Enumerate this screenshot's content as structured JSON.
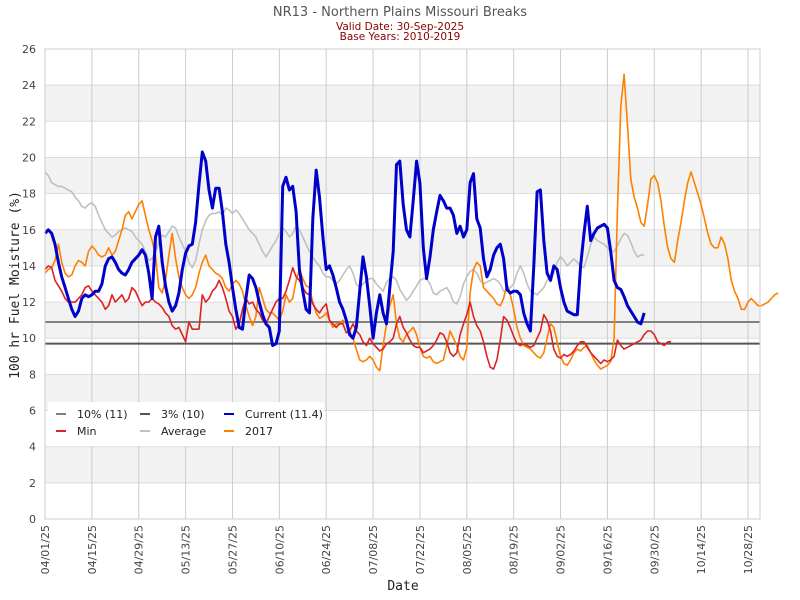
{
  "chart_data": {
    "type": "line",
    "title": "NR13 - Northern Plains Missouri Breaks",
    "subtitle_lines": [
      "Valid Date: 30-Sep-2025",
      "Base Years: 2010-2019"
    ],
    "xlabel": "Date",
    "ylabel": "100 hr Fuel Moisture (%)",
    "ylim": [
      0,
      26
    ],
    "yticks": [
      0,
      2,
      4,
      6,
      8,
      10,
      12,
      14,
      16,
      18,
      20,
      22,
      24,
      26
    ],
    "x_start": "04/01/25",
    "x_range_days": [
      0,
      213
    ],
    "xticks": [
      {
        "day": 0,
        "label": "04/01/25"
      },
      {
        "day": 14,
        "label": "04/15/25"
      },
      {
        "day": 28,
        "label": "04/29/25"
      },
      {
        "day": 42,
        "label": "05/13/25"
      },
      {
        "day": 56,
        "label": "05/27/25"
      },
      {
        "day": 70,
        "label": "06/10/25"
      },
      {
        "day": 84,
        "label": "06/24/25"
      },
      {
        "day": 98,
        "label": "07/08/25"
      },
      {
        "day": 112,
        "label": "07/22/25"
      },
      {
        "day": 126,
        "label": "08/05/25"
      },
      {
        "day": 140,
        "label": "08/19/25"
      },
      {
        "day": 154,
        "label": "09/02/25"
      },
      {
        "day": 168,
        "label": "09/16/25"
      },
      {
        "day": 182,
        "label": "09/30/25"
      },
      {
        "day": 196,
        "label": "10/14/25"
      },
      {
        "day": 210,
        "label": "10/28/25"
      }
    ],
    "grid": true,
    "legend_position": "lower-left",
    "thresholds": [
      {
        "name": "10% (11)",
        "value": 10.9,
        "color": "#808080"
      },
      {
        "name": "3% (10)",
        "value": 9.7,
        "color": "#555555"
      }
    ],
    "series": [
      {
        "name": "Current (11.4)",
        "color": "#0000cc",
        "x_step_days": 1,
        "values": [
          15.8,
          16.0,
          15.8,
          15.2,
          14.2,
          13.4,
          12.8,
          12.2,
          11.6,
          11.2,
          11.5,
          12.2,
          12.4,
          12.3,
          12.4,
          12.6,
          12.6,
          13.0,
          14.0,
          14.4,
          14.5,
          14.2,
          13.8,
          13.6,
          13.5,
          13.8,
          14.2,
          14.4,
          14.6,
          14.9,
          14.6,
          13.6,
          12.2,
          15.6,
          16.2,
          14.2,
          12.9,
          12.0,
          11.5,
          11.8,
          12.5,
          13.8,
          14.7,
          15.1,
          15.2,
          16.4,
          18.5,
          20.3,
          19.8,
          18.2,
          17.2,
          18.3,
          18.3,
          17.0,
          15.2,
          14.2,
          12.8,
          11.6,
          10.6,
          10.5,
          12.2,
          13.5,
          13.3,
          12.8,
          12.0,
          11.3,
          10.8,
          10.6,
          9.6,
          9.7,
          10.4,
          18.4,
          18.9,
          18.2,
          18.4,
          17.0,
          13.8,
          12.6,
          11.6,
          11.4,
          16.6,
          19.3,
          17.8,
          15.6,
          13.8,
          14.0,
          13.5,
          12.8,
          12.0,
          11.6,
          11.0,
          10.2,
          10.0,
          10.6,
          12.6,
          14.5,
          13.4,
          11.8,
          10.0,
          11.4,
          12.4,
          11.4,
          10.8,
          12.8,
          14.8,
          19.6,
          19.8,
          17.4,
          16.0,
          15.6,
          17.6,
          19.8,
          18.6,
          15.0,
          13.3,
          14.5,
          16.0,
          17.0,
          17.9,
          17.6,
          17.2,
          17.2,
          16.8,
          15.8,
          16.2,
          15.6,
          16.0,
          18.6,
          19.1,
          16.6,
          16.1,
          14.4,
          13.4,
          13.8,
          14.6,
          15.0,
          15.2,
          14.4,
          12.7,
          12.5,
          12.6,
          12.6,
          12.4,
          11.4,
          10.8,
          10.4,
          14.0,
          18.1,
          18.2,
          15.4,
          13.6,
          13.2,
          14.0,
          13.8,
          12.8,
          12.0,
          11.5,
          11.4,
          11.3,
          11.3,
          14.0,
          15.8,
          17.3,
          15.4,
          15.8,
          16.1,
          16.2,
          16.3,
          16.1,
          14.8,
          13.2,
          12.8,
          12.7,
          12.3,
          11.8,
          11.5,
          11.2,
          10.9,
          10.8,
          11.4
        ]
      },
      {
        "name": "Min",
        "color": "#dd2222",
        "x_step_days": 1,
        "values": [
          13.8,
          14.0,
          13.9,
          13.2,
          12.9,
          12.6,
          12.2,
          12.0,
          12.0,
          12.0,
          12.2,
          12.4,
          12.8,
          12.9,
          12.6,
          12.4,
          12.2,
          12.0,
          11.6,
          11.8,
          12.4,
          12.0,
          12.2,
          12.4,
          12.0,
          12.2,
          12.8,
          12.6,
          12.2,
          11.8,
          12.0,
          12.0,
          12.2,
          12.0,
          11.9,
          11.7,
          11.4,
          11.2,
          10.7,
          10.5,
          10.6,
          10.2,
          9.8,
          10.9,
          10.5,
          10.5,
          10.5,
          12.4,
          12.0,
          12.2,
          12.6,
          12.8,
          13.2,
          12.8,
          12.2,
          11.5,
          11.2,
          10.5,
          10.8,
          11.6,
          12.2,
          11.9,
          12.0,
          11.6,
          11.4,
          11.0,
          10.8,
          11.2,
          11.6,
          12.0,
          12.2,
          12.2,
          12.6,
          13.2,
          13.9,
          13.4,
          13.2,
          12.8,
          12.5,
          12.4,
          11.9,
          11.6,
          11.4,
          11.7,
          11.9,
          11.0,
          10.8,
          10.6,
          10.8,
          10.8,
          10.3,
          10.4,
          10.8,
          10.4,
          10.2,
          9.8,
          9.6,
          10.0,
          9.7,
          9.5,
          9.3,
          9.4,
          9.7,
          9.8,
          10.0,
          10.8,
          11.2,
          10.6,
          10.3,
          9.9,
          9.6,
          9.5,
          9.5,
          9.2,
          9.3,
          9.4,
          9.6,
          9.9,
          10.3,
          10.2,
          9.8,
          9.2,
          9.0,
          9.2,
          10.2,
          10.8,
          11.3,
          12.0,
          11.2,
          10.7,
          10.4,
          9.8,
          9.0,
          8.4,
          8.3,
          8.8,
          9.9,
          11.2,
          11.0,
          10.6,
          10.1,
          9.7,
          9.6,
          9.7,
          9.6,
          9.5,
          9.6,
          10.0,
          10.4,
          11.3,
          11.0,
          10.4,
          9.4,
          9.0,
          8.9,
          9.1,
          9.0,
          9.1,
          9.3,
          9.6,
          9.8,
          9.8,
          9.5,
          9.2,
          9.0,
          8.8,
          8.6,
          8.8,
          8.7,
          8.8,
          9.0,
          9.9,
          9.6,
          9.4,
          9.5,
          9.6,
          9.7,
          9.8,
          9.9,
          10.2,
          10.4,
          10.4,
          10.2,
          9.8,
          9.7,
          9.6,
          9.8,
          9.8
        ]
      },
      {
        "name": "Average",
        "color": "#c0c0c0",
        "x_step_days": 1,
        "values": [
          19.2,
          19.0,
          18.6,
          18.5,
          18.4,
          18.4,
          18.3,
          18.2,
          18.1,
          17.8,
          17.6,
          17.3,
          17.2,
          17.4,
          17.5,
          17.3,
          16.8,
          16.4,
          16.0,
          15.8,
          15.6,
          15.7,
          15.9,
          16.0,
          16.1,
          16.0,
          15.9,
          15.6,
          15.4,
          15.2,
          14.8,
          14.3,
          14.4,
          14.8,
          15.3,
          15.7,
          15.6,
          15.9,
          16.2,
          16.1,
          15.6,
          15.2,
          14.8,
          14.2,
          13.9,
          14.3,
          15.2,
          16.0,
          16.5,
          16.8,
          16.9,
          16.9,
          17.0,
          16.8,
          17.2,
          17.1,
          16.9,
          17.1,
          16.9,
          16.6,
          16.3,
          16.0,
          15.8,
          15.6,
          15.2,
          14.8,
          14.5,
          14.8,
          15.1,
          15.4,
          15.8,
          16.1,
          15.9,
          15.6,
          15.8,
          16.2,
          16.0,
          15.6,
          15.2,
          14.8,
          14.5,
          14.2,
          14.0,
          13.6,
          13.4,
          13.4,
          13.2,
          13.0,
          13.2,
          13.5,
          13.8,
          14.0,
          13.6,
          13.0,
          12.8,
          13.0,
          13.2,
          13.3,
          13.3,
          13.0,
          12.8,
          12.6,
          13.1,
          13.3,
          13.4,
          13.2,
          12.7,
          12.4,
          12.1,
          12.3,
          12.6,
          12.9,
          13.2,
          13.3,
          13.3,
          13.0,
          12.5,
          12.4,
          12.6,
          12.7,
          12.8,
          12.5,
          12.0,
          11.9,
          12.3,
          13.0,
          13.4,
          13.7,
          13.8,
          13.6,
          13.2,
          13.0,
          13.1,
          13.2,
          13.3,
          13.2,
          13.0,
          12.6,
          12.6,
          12.8,
          13.0,
          13.6,
          14.0,
          13.6,
          13.0,
          12.6,
          12.5,
          12.4,
          12.6,
          12.8,
          13.2,
          13.4,
          13.6,
          14.2,
          14.5,
          14.3,
          14.0,
          14.2,
          14.4,
          14.2,
          14.0,
          13.9,
          14.5,
          15.2,
          15.6,
          15.4,
          15.3,
          15.2,
          15.0,
          14.8,
          14.8,
          15.1,
          15.5,
          15.8,
          15.7,
          15.3,
          14.8,
          14.5,
          14.6,
          14.6
        ]
      },
      {
        "name": "2017",
        "color": "#ff8000",
        "x_step_days": 1,
        "values": [
          13.6,
          13.8,
          13.9,
          14.3,
          15.2,
          14.2,
          13.6,
          13.4,
          13.5,
          14.0,
          14.3,
          14.2,
          14.0,
          14.8,
          15.1,
          14.9,
          14.6,
          14.5,
          14.6,
          15.0,
          14.6,
          14.8,
          15.4,
          16.0,
          16.8,
          17.0,
          16.6,
          17.0,
          17.4,
          17.6,
          16.8,
          16.0,
          15.4,
          14.6,
          12.8,
          12.5,
          13.2,
          14.6,
          15.8,
          14.4,
          13.4,
          12.8,
          12.4,
          12.2,
          12.4,
          12.8,
          13.6,
          14.2,
          14.6,
          14.0,
          13.8,
          13.6,
          13.5,
          13.3,
          12.8,
          12.6,
          13.0,
          13.2,
          13.0,
          12.6,
          11.8,
          11.2,
          10.7,
          11.2,
          12.8,
          12.2,
          11.6,
          11.4,
          11.4,
          11.2,
          11.0,
          11.5,
          12.4,
          12.0,
          12.2,
          13.2,
          13.8,
          13.3,
          12.9,
          12.8,
          12.0,
          11.4,
          11.1,
          11.2,
          11.4,
          11.0,
          10.6,
          10.8,
          10.8,
          11.0,
          10.8,
          10.4,
          10.0,
          9.4,
          8.8,
          8.7,
          8.8,
          9.0,
          8.8,
          8.4,
          8.2,
          9.6,
          10.8,
          11.8,
          12.4,
          10.8,
          10.0,
          9.8,
          10.2,
          10.4,
          10.6,
          10.2,
          9.5,
          9.0,
          8.9,
          9.0,
          8.7,
          8.6,
          8.7,
          8.8,
          9.6,
          10.4,
          10.0,
          9.6,
          9.0,
          8.8,
          9.5,
          12.5,
          13.8,
          14.2,
          14.0,
          12.8,
          12.6,
          12.4,
          12.2,
          11.9,
          11.8,
          12.2,
          13.0,
          12.4,
          11.6,
          10.6,
          10.0,
          9.6,
          9.5,
          9.4,
          9.2,
          9.0,
          8.9,
          9.2,
          10.0,
          10.8,
          10.6,
          9.8,
          9.0,
          8.6,
          8.5,
          8.8,
          9.2,
          9.4,
          9.3,
          9.5,
          9.6,
          9.2,
          8.8,
          8.5,
          8.3,
          8.4,
          8.5,
          8.7,
          10.0,
          17.0,
          22.8,
          24.6,
          21.8,
          18.8,
          17.8,
          17.2,
          16.4,
          16.2,
          17.4,
          18.8,
          19.0,
          18.6,
          17.6,
          16.2,
          15.0,
          14.4,
          14.2,
          15.4,
          16.4,
          17.6,
          18.6,
          19.2,
          18.6,
          18.0,
          17.4,
          16.6,
          15.8,
          15.2,
          15.0,
          15.0,
          15.6,
          15.2,
          14.4,
          13.2,
          12.6,
          12.2,
          11.6,
          11.6,
          12.0,
          12.2,
          12.0,
          11.8,
          11.8,
          11.9,
          12.0,
          12.2,
          12.4,
          12.5
        ]
      }
    ]
  }
}
